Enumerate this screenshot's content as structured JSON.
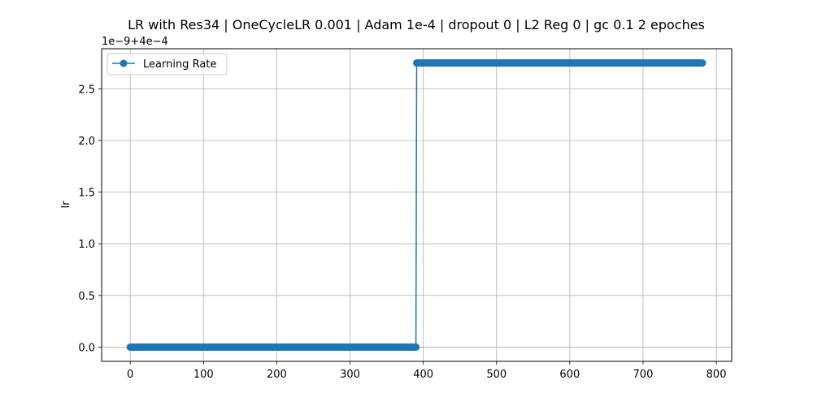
{
  "chart_data": {
    "type": "line",
    "title": "LR with Res34 | OneCycleLR 0.001 | Adam 1e-4 | dropout 0 | L2 Reg 0 | gc 0.1 2 epoches",
    "xlabel": "",
    "ylabel": "lr",
    "y_offset_label": "1e−9+4e−4",
    "xlim": [
      -39,
      821
    ],
    "ylim": [
      -0.138,
      2.888
    ],
    "x_ticks": [
      0,
      100,
      200,
      300,
      400,
      500,
      600,
      700,
      800
    ],
    "x_tick_labels": [
      "0",
      "100",
      "200",
      "300",
      "400",
      "500",
      "600",
      "700",
      "800"
    ],
    "y_ticks": [
      0.0,
      0.5,
      1.0,
      1.5,
      2.0,
      2.5
    ],
    "y_tick_labels": [
      "0.0",
      "0.5",
      "1.0",
      "1.5",
      "2.0",
      "2.5"
    ],
    "grid": true,
    "legend_position": "top-left",
    "series": [
      {
        "name": "Learning Rate",
        "color": "#1f77b4",
        "marker": "circle",
        "segments": [
          {
            "x_start": 0,
            "x_end": 390,
            "x_step": 1,
            "y": 0.0
          },
          {
            "x_start": 391,
            "x_end": 781,
            "x_step": 1,
            "y": 2.75
          }
        ]
      }
    ]
  }
}
